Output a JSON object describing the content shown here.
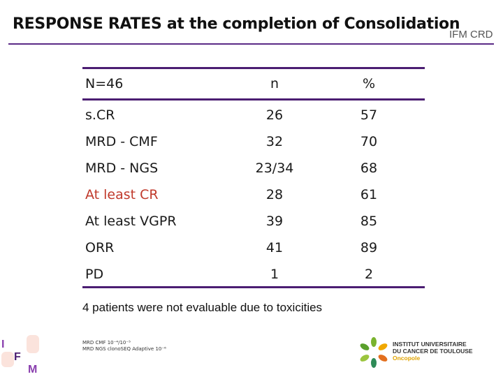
{
  "slide": {
    "title": "RESPONSE RATES  at the completion of Consolidation",
    "tag": "IFM CRD"
  },
  "table": {
    "headers": [
      "N=46",
      "n",
      "%"
    ],
    "rows": [
      {
        "label": "s.CR",
        "n": "26",
        "pct": "57"
      },
      {
        "label": "MRD - CMF",
        "n": "32",
        "pct": "70"
      },
      {
        "label": "MRD - NGS",
        "n": "23/34",
        "pct": "68"
      },
      {
        "label": "At least CR",
        "n": "28",
        "pct": "61"
      },
      {
        "label": "At least VGPR",
        "n": "39",
        "pct": "85"
      },
      {
        "label": "ORR",
        "n": "41",
        "pct": "89"
      },
      {
        "label": "PD",
        "n": "1",
        "pct": "2"
      }
    ],
    "highlight_color": "#c0392b",
    "rule_color": "#4b1d72"
  },
  "note": "4 patients were not evaluable due to toxicities",
  "footnote": {
    "line1": "MRD CMF 10⁻⁴/10⁻⁵",
    "line2": "MRD NGS clonoSEQ Adaptive 10⁻⁶"
  },
  "logos": {
    "ifm_letters": [
      "I",
      "F",
      "M"
    ],
    "iuct_line1": "INSTITUT UNIVERSITAIRE",
    "iuct_line2": "DU CANCER DE TOULOUSE",
    "iuct_line3": "Oncopole",
    "iuct_icon": "iuct-leaf-icon"
  }
}
